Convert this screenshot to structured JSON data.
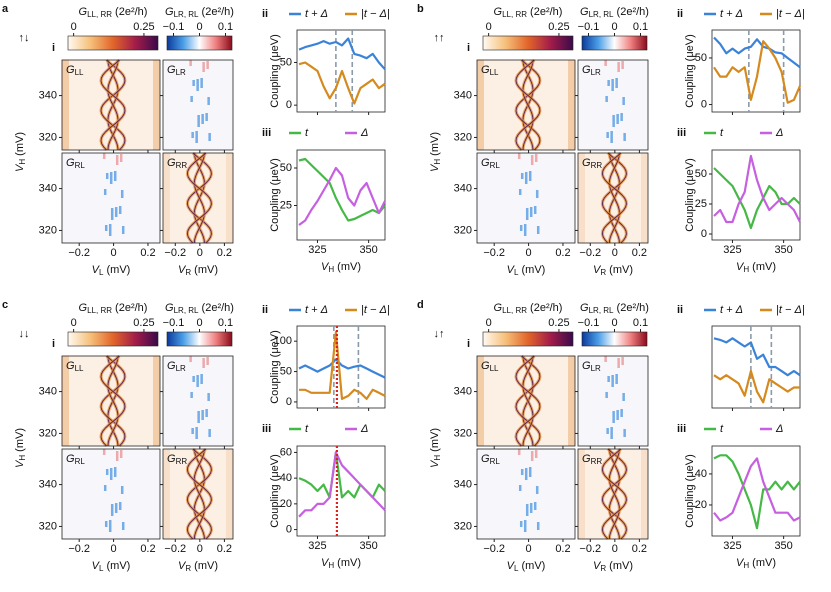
{
  "common": {
    "label_i": "i",
    "label_ii": "ii",
    "label_iii": "iii",
    "colorbars": [
      {
        "title": {
          "main": "G",
          "sub": "LL, RR",
          "unit": " (2e²/h)"
        },
        "lim": [
          -0.02,
          0.3
        ],
        "ticks": [
          0,
          0.25
        ],
        "colors": [
          "#fffaf2",
          "#f6c07a",
          "#e2652a",
          "#a31c4a",
          "#3a0a4a"
        ]
      },
      {
        "title": {
          "main": "G",
          "sub": "LR, RL",
          "unit": " (2e²/h)"
        },
        "lim": [
          -0.125,
          0.125
        ],
        "ticks": [
          {
            "value": -0.1,
            "label": "−0.1"
          },
          0,
          0.1
        ],
        "colors": [
          "#0a3a9a",
          "#4a9ee8",
          "#ffffff",
          "#f08080",
          "#8a0a1a"
        ]
      }
    ],
    "heatmap": {
      "labels": [
        {
          "main": "G",
          "sub": "LL"
        },
        {
          "main": "G",
          "sub": "LR"
        },
        {
          "main": "G",
          "sub": "RL"
        },
        {
          "main": "G",
          "sub": "RR"
        }
      ],
      "ylim": [
        314,
        357
      ],
      "yticks": [
        320,
        340
      ],
      "xlim": [
        -0.3,
        0.27
      ],
      "xticks": [
        {
          "value": -0.2,
          "label": "−0.2"
        },
        0,
        0.2
      ],
      "ylabel": {
        "main": "V",
        "sub": "H",
        "unit": " (mV)"
      },
      "xlabels": [
        {
          "main": "V",
          "sub": "L",
          "unit": " (mV)"
        },
        {
          "main": "V",
          "sub": "R",
          "unit": " (mV)"
        }
      ]
    },
    "x": [
      316,
      319,
      322,
      325,
      328,
      331,
      334,
      337,
      340,
      343,
      346,
      349,
      352,
      355,
      358
    ],
    "xlim": [
      315,
      358
    ],
    "xticks": [
      325,
      350
    ],
    "xlabel": {
      "main": "V",
      "sub": "H",
      "unit": " (mV)"
    }
  },
  "panels": [
    {
      "letter": "a",
      "spin": "↑↓",
      "ii": {
        "ylim": [
          -8,
          88
        ],
        "yticks": [
          0,
          50
        ],
        "ylabel": "Coupling (μeV)",
        "vlines": [
          334,
          342
        ],
        "series": [
          {
            "name": "t + Δ",
            "color": "#3b83d9",
            "values": [
              65,
              68,
              70,
              72,
              75,
              72,
              74,
              70,
              78,
              60,
              58,
              55,
              60,
              50,
              42
            ]
          },
          {
            "name": "|t − Δ|",
            "color": "#d58a1f",
            "values": [
              48,
              50,
              45,
              40,
              22,
              8,
              20,
              40,
              20,
              2,
              20,
              25,
              30,
              20,
              25
            ]
          }
        ]
      },
      "iii": {
        "ylim": [
          2,
          62
        ],
        "yticks": [
          25,
          50
        ],
        "ylabel": "Coupling (μeV)",
        "series": [
          {
            "name": "t",
            "color": "#45b846",
            "values": [
              55,
              56,
              52,
              48,
              44,
              40,
              30,
              22,
              15,
              16,
              18,
              20,
              22,
              20,
              25
            ]
          },
          {
            "name": "Δ",
            "color": "#c65fe0",
            "values": [
              12,
              15,
              22,
              28,
              35,
              42,
              50,
              45,
              30,
              25,
              35,
              40,
              30,
              20,
              28
            ]
          }
        ]
      }
    },
    {
      "letter": "b",
      "spin": "↑↑",
      "ii": {
        "ylim": [
          -8,
          80
        ],
        "yticks": [
          0,
          50
        ],
        "ylabel": "Coupling (μeV)",
        "vlines": [
          333,
          350
        ],
        "series": [
          {
            "name": "t + Δ",
            "color": "#3b83d9",
            "values": [
              72,
              65,
              55,
              60,
              55,
              60,
              62,
              70,
              62,
              60,
              56,
              55,
              50,
              45,
              40
            ]
          },
          {
            "name": "|t − Δ|",
            "color": "#d58a1f",
            "values": [
              40,
              30,
              30,
              40,
              35,
              40,
              5,
              30,
              68,
              60,
              50,
              35,
              2,
              5,
              20
            ]
          }
        ]
      },
      "iii": {
        "ylim": [
          -5,
          70
        ],
        "yticks": [
          0,
          25,
          50
        ],
        "ylabel": "Coupling (μeV)",
        "series": [
          {
            "name": "t",
            "color": "#45b846",
            "values": [
              55,
              50,
              45,
              40,
              30,
              20,
              5,
              20,
              30,
              40,
              35,
              25,
              25,
              30,
              25
            ]
          },
          {
            "name": "Δ",
            "color": "#c65fe0",
            "values": [
              15,
              20,
              10,
              10,
              25,
              35,
              65,
              45,
              30,
              20,
              25,
              30,
              25,
              20,
              10
            ]
          }
        ]
      }
    },
    {
      "letter": "c",
      "spin": "↓↓",
      "ii": {
        "ylim": [
          -10,
          125
        ],
        "yticks": [
          0,
          50,
          100
        ],
        "ylabel": "Coupling (μeV)",
        "vlines": [
          333,
          345
        ],
        "marker": 334.5,
        "marker_color": "#e0201b",
        "series": [
          {
            "name": "t + Δ",
            "color": "#3b83d9",
            "values": [
              55,
              60,
              55,
              50,
              55,
              60,
              70,
              60,
              55,
              58,
              60,
              55,
              50,
              45,
              40
            ]
          },
          {
            "name": "|t − Δ|",
            "color": "#d58a1f",
            "values": [
              20,
              20,
              15,
              15,
              15,
              15,
              115,
              5,
              10,
              20,
              15,
              5,
              20,
              15,
              10
            ]
          }
        ]
      },
      "iii": {
        "ylim": [
          -5,
          65
        ],
        "yticks": [
          0,
          20,
          40,
          60
        ],
        "ylabel": "Coupling (μeV)",
        "marker": 334.5,
        "marker_color": "#e0201b",
        "series": [
          {
            "name": "t",
            "color": "#45b846",
            "values": [
              40,
              38,
              35,
              30,
              35,
              25,
              60,
              25,
              30,
              25,
              35,
              30,
              25,
              35,
              30
            ]
          },
          {
            "name": "Δ",
            "color": "#c65fe0",
            "values": [
              10,
              15,
              15,
              20,
              20,
              25,
              60,
              50,
              45,
              40,
              35,
              30,
              25,
              20,
              15
            ]
          }
        ]
      }
    },
    {
      "letter": "d",
      "spin": "↓↑",
      "ii": {
        "ylim": [
          -5,
          95
        ],
        "yticks": [],
        "vlines": [
          334,
          344
        ],
        "series": [
          {
            "name": "t + Δ",
            "color": "#3b83d9",
            "values": [
              80,
              78,
              75,
              80,
              75,
              70,
              75,
              55,
              60,
              45,
              45,
              40,
              35,
              40,
              35
            ]
          },
          {
            "name": "|t − Δ|",
            "color": "#d58a1f",
            "values": [
              35,
              30,
              35,
              30,
              25,
              10,
              40,
              15,
              2,
              30,
              25,
              20,
              15,
              20,
              20
            ]
          }
        ]
      },
      "iii": {
        "ylim": [
          0,
          58
        ],
        "yticks": [
          20,
          40
        ],
        "ylabel": "Coupling (μeV)",
        "series": [
          {
            "name": "t",
            "color": "#45b846",
            "values": [
              50,
              52,
              52,
              48,
              40,
              30,
              20,
              5,
              30,
              30,
              35,
              30,
              35,
              30,
              35
            ]
          },
          {
            "name": "Δ",
            "color": "#c65fe0",
            "values": [
              15,
              10,
              12,
              15,
              25,
              35,
              45,
              50,
              35,
              25,
              15,
              15,
              15,
              10,
              12
            ]
          }
        ]
      }
    }
  ]
}
